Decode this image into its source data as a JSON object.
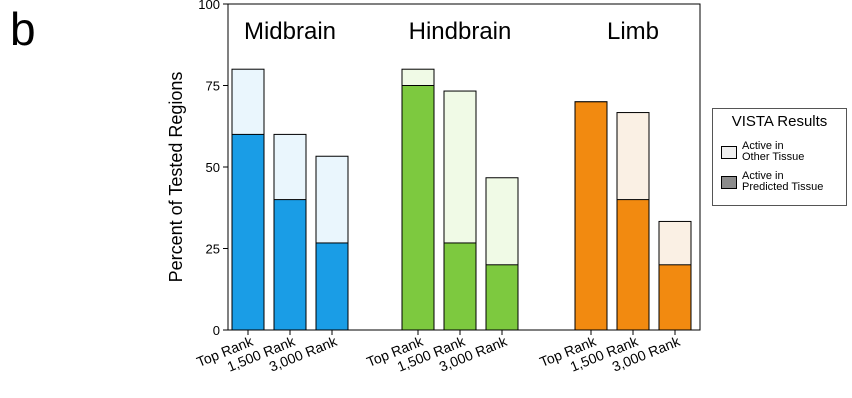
{
  "panel_label": "b",
  "chart_data": {
    "type": "bar",
    "stacked": true,
    "ylabel": "Percent of Tested Regions",
    "ylim": [
      0,
      100
    ],
    "yticks": [
      0,
      25,
      50,
      75,
      100
    ],
    "groups": [
      {
        "name": "Midbrain",
        "color": "#1a9de6",
        "light_color": "#eaf6fd",
        "categories": [
          "Top Rank",
          "1,500 Rank",
          "3,000 Rank"
        ],
        "predicted": [
          60,
          40,
          26.7
        ],
        "total": [
          80,
          60,
          53.3
        ]
      },
      {
        "name": "Hindbrain",
        "color": "#7dc93f",
        "light_color": "#f0fae6",
        "categories": [
          "Top Rank",
          "1,500 Rank",
          "3,000 Rank"
        ],
        "predicted": [
          75,
          26.7,
          20
        ],
        "total": [
          80,
          73.3,
          46.7
        ]
      },
      {
        "name": "Limb",
        "color": "#f28a10",
        "light_color": "#faf0e4",
        "categories": [
          "Top Rank",
          "1,500 Rank",
          "3,000 Rank"
        ],
        "predicted": [
          70,
          40,
          20
        ],
        "total": [
          70,
          66.7,
          33.3
        ]
      }
    ],
    "legend": {
      "title": "VISTA Results",
      "placement": "right",
      "items": [
        {
          "line1": "Active in",
          "line2": "Other Tissue",
          "swatch": "#efefef"
        },
        {
          "line1": "Active in",
          "line2": "Predicted Tissue",
          "swatch": "#8c8c8c"
        }
      ]
    }
  }
}
